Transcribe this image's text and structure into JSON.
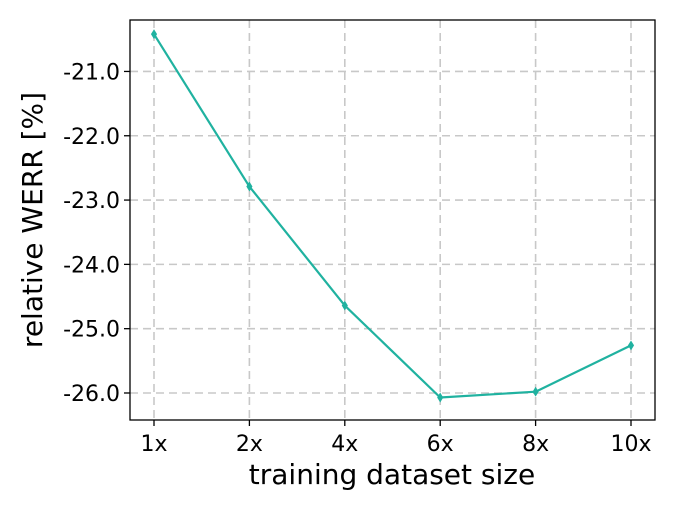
{
  "chart_data": {
    "type": "line",
    "title": "",
    "xlabel": "training dataset size",
    "ylabel": "relative WERR [%]",
    "categories": [
      "1x",
      "2x",
      "4x",
      "6x",
      "8x",
      "10x"
    ],
    "series": [
      {
        "values": [
          -20.42,
          -22.79,
          -24.64,
          -26.07,
          -25.98,
          -25.26
        ],
        "color": "#20b2a0",
        "marker": "thin-diamond"
      }
    ],
    "ylim": [
      -26.42,
      -20.2
    ],
    "yticks": [
      -21.0,
      -22.0,
      -23.0,
      -24.0,
      -25.0,
      -26.0
    ],
    "ytick_labels": [
      "-21.0",
      "-22.0",
      "-23.0",
      "-24.0",
      "-25.0",
      "-26.0"
    ],
    "grid": true
  }
}
